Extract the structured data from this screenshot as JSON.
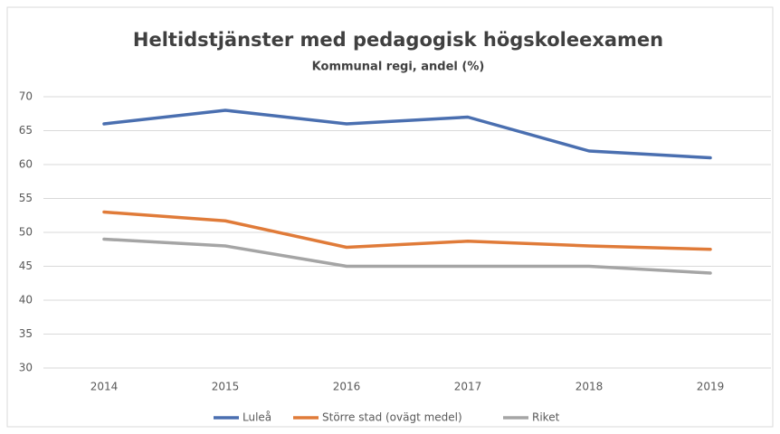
{
  "chart_data": {
    "type": "line",
    "title": "Heltidstjänster med pedagogisk högskoleexamen",
    "subtitle": "Kommunal regi, andel (%)",
    "categories": [
      "2014",
      "2015",
      "2016",
      "2017",
      "2018",
      "2019"
    ],
    "series": [
      {
        "name": "Luleå",
        "color": "#4a6fb0",
        "values": [
          66,
          68,
          66,
          67,
          62,
          61
        ]
      },
      {
        "name": "Större stad (ovägt medel)",
        "color": "#e07b39",
        "values": [
          53,
          51.7,
          47.8,
          48.7,
          48,
          47.5
        ]
      },
      {
        "name": "Riket",
        "color": "#a5a5a5",
        "values": [
          49,
          48,
          45,
          45,
          45,
          44
        ]
      }
    ],
    "ylim": [
      30,
      70
    ],
    "yticks": [
      30,
      35,
      40,
      45,
      50,
      55,
      60,
      65,
      70
    ],
    "grid": true,
    "legend": "bottom"
  }
}
